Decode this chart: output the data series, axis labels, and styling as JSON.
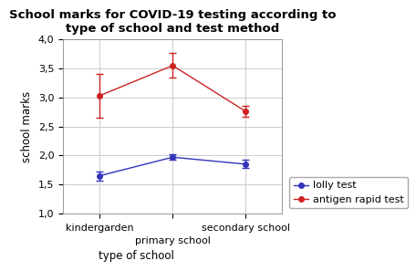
{
  "title": "School marks for COVID-19 testing according to\ntype of school and test method",
  "xlabel": "type of school",
  "ylabel": "school marks",
  "ylim": [
    1.0,
    4.0
  ],
  "yticks": [
    1.0,
    1.5,
    2.0,
    2.5,
    3.0,
    3.5,
    4.0
  ],
  "xtick_labels": [
    "kindergarden",
    "primary school",
    "secondary school"
  ],
  "lolly_values": [
    1.65,
    1.97,
    1.85
  ],
  "lolly_err_lower": [
    0.08,
    0.05,
    0.07
  ],
  "lolly_err_upper": [
    0.08,
    0.05,
    0.07
  ],
  "antigen_values": [
    3.03,
    3.55,
    2.76
  ],
  "antigen_err_lower": [
    0.38,
    0.21,
    0.1
  ],
  "antigen_err_upper": [
    0.38,
    0.21,
    0.1
  ],
  "lolly_color": "#3333bb",
  "antigen_color": "#cc2222",
  "background_color": "#ffffff",
  "grid_color": "#cccccc",
  "title_fontsize": 9.5,
  "label_fontsize": 8.5,
  "tick_fontsize": 8,
  "legend_fontsize": 8
}
